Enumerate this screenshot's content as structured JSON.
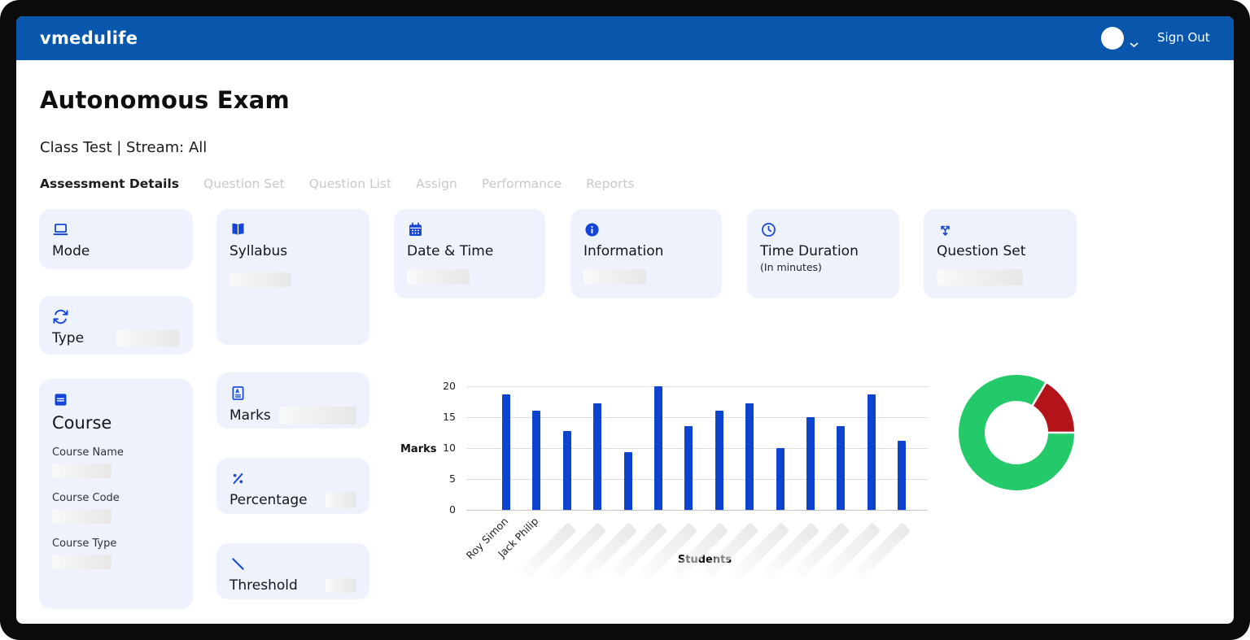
{
  "header": {
    "brand": "vmedulife",
    "sign_out": "Sign Out"
  },
  "page": {
    "title": "Autonomous Exam",
    "subtitle": "Class Test | Stream: All"
  },
  "tabs": [
    {
      "label": "Assessment Details",
      "active": true
    },
    {
      "label": "Question Set",
      "active": false
    },
    {
      "label": "Question List",
      "active": false
    },
    {
      "label": "Assign",
      "active": false
    },
    {
      "label": "Performance",
      "active": false
    },
    {
      "label": "Reports",
      "active": false
    }
  ],
  "cards": {
    "mode": {
      "label": "Mode",
      "icon": "laptop-icon"
    },
    "syllabus": {
      "label": "Syllabus",
      "icon": "open-book-icon",
      "value_redacted": true
    },
    "date_time": {
      "label": "Date & Time",
      "icon": "calendar-icon",
      "value_redacted": true
    },
    "information": {
      "label": "Information",
      "icon": "info-icon",
      "value_redacted": true
    },
    "time_duration": {
      "label": "Time Duration",
      "sublabel": "(In minutes)",
      "icon": "clock-icon"
    },
    "question_set": {
      "label": "Question Set",
      "icon": "shuffle-arrows-icon",
      "value_redacted": true
    },
    "type": {
      "label": "Type",
      "icon": "sync-icon",
      "value_redacted": true
    },
    "course": {
      "label": "Course",
      "icon": "book-icon",
      "fields": [
        {
          "label": "Course Name",
          "value_redacted": true
        },
        {
          "label": "Course Code",
          "value_redacted": true
        },
        {
          "label": "Course Type",
          "value_redacted": true
        }
      ]
    },
    "marks": {
      "label": "Marks",
      "icon": "grade-sheet-icon",
      "value_redacted": true
    },
    "percentage": {
      "label": "Percentage",
      "icon": "percent-icon",
      "value_redacted": true
    },
    "threshold": {
      "label": "Threshold",
      "icon": "threshold-line-icon",
      "value_redacted": true
    }
  },
  "colors": {
    "header_blue": "#0957ad",
    "accent_blue": "#1345d6",
    "bar_blue": "#0d44cf",
    "card_bg": "#edf2fc",
    "donut_green": "#24c969",
    "donut_red": "#b41319"
  },
  "chart_data": [
    {
      "type": "bar",
      "title": "",
      "xlabel": "Students",
      "ylabel": "Marks",
      "ylim": [
        0,
        20
      ],
      "yticks": [
        0,
        5,
        10,
        15,
        20
      ],
      "grid": true,
      "bar_color": "#0d44cf",
      "categories": [
        "Roy Simon",
        "Jack Philip",
        null,
        null,
        null,
        null,
        null,
        null,
        null,
        null,
        null,
        null,
        null,
        null
      ],
      "categories_blurred_from_index": 2,
      "values": [
        18.7,
        16,
        12.7,
        17.2,
        9.3,
        20,
        13.5,
        16,
        17.2,
        10,
        15,
        13.5,
        18.7,
        11.2
      ]
    },
    {
      "type": "pie",
      "donut": true,
      "labels_visible": false,
      "start_angle_from_top_deg": 90,
      "segments": [
        {
          "name": "green-segment",
          "value": 83.5,
          "color": "#24c969"
        },
        {
          "name": "red-segment",
          "value": 16.5,
          "color": "#b41319"
        }
      ]
    }
  ]
}
